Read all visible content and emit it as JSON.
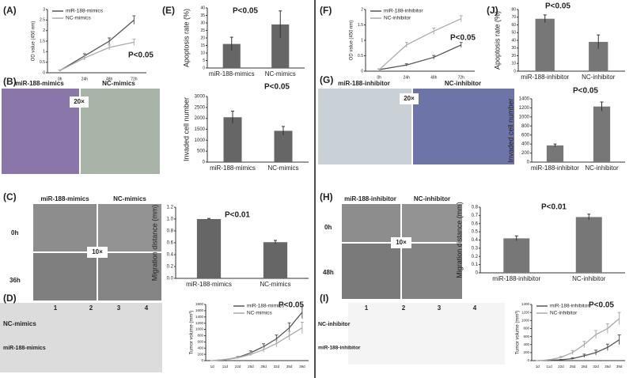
{
  "panels": [
    "(A)",
    "(B)",
    "(C)",
    "(D)",
    "(E)",
    "(F)",
    "(G)",
    "(H)",
    "(I)",
    "(J)"
  ],
  "images": {
    "B": {
      "left": "miR-188-mimics",
      "right": "NC-mimics",
      "mag": "20×"
    },
    "C": {
      "left": "miR-188-mimics",
      "right": "NC-mimics",
      "row1": "0h",
      "row2": "36h",
      "mag": "10×"
    },
    "D": {
      "numbers": [
        "1",
        "2",
        "3",
        "4"
      ],
      "row1": "NC-mimics",
      "row2": "miR-188-mimics"
    },
    "G": {
      "left": "miR-188-inhibitor",
      "right": "NC-inhibitor",
      "mag": "20×"
    },
    "H": {
      "left": "miR-188-inhibitor",
      "right": "NC-inhibitor",
      "row1": "0h",
      "row2": "48h",
      "mag": "10×"
    },
    "I": {
      "numbers": [
        "1",
        "2",
        "3",
        "4"
      ],
      "row1": "NC-inhibitor",
      "row2": "miR-188-inhibitor"
    }
  },
  "chart_data": [
    {
      "type": "line",
      "y_label": "OD value (450 nm)",
      "annotation": "P<0.05",
      "legend": "upper left",
      "categories": [
        "0h",
        "24h",
        "48h",
        "72h"
      ],
      "ylim": [
        0,
        3
      ],
      "yticks": [
        0,
        0.5,
        1,
        1.5,
        2,
        2.5,
        3
      ],
      "series": [
        {
          "name": "miR-188-mimics",
          "color": "#555555",
          "values": [
            0.1,
            0.8,
            1.5,
            2.5
          ],
          "errors": [
            0.03,
            0.1,
            0.15,
            0.2
          ]
        },
        {
          "name": "NC-mimics",
          "color": "#aaaaaa",
          "values": [
            0.1,
            0.7,
            1.2,
            1.45
          ],
          "errors": [
            0.03,
            0.1,
            0.12,
            0.15
          ]
        }
      ]
    },
    {
      "type": "bar",
      "y_label": "Apoptosis rate (%)",
      "annotation": "P<0.05",
      "categories": [
        "miR-188-mimics",
        "NC-mimics"
      ],
      "values": [
        16,
        29
      ],
      "errors": [
        4.5,
        9
      ],
      "color": "#666666",
      "ylim": [
        0,
        40
      ],
      "yticks": [
        0,
        5,
        10,
        15,
        20,
        25,
        30,
        35,
        40
      ]
    },
    {
      "type": "bar",
      "y_label": "Invaded cell number",
      "annotation": "P<0.05",
      "categories": [
        "miR-188-mimics",
        "NC-mimics"
      ],
      "values": [
        2050,
        1430
      ],
      "errors": [
        280,
        200
      ],
      "color": "#666666",
      "ylim": [
        0,
        3000
      ],
      "yticks": [
        0,
        500,
        1000,
        1500,
        2000,
        2500,
        3000
      ]
    },
    {
      "type": "bar",
      "y_label": "Migration distance (mm)",
      "annotation": "P<0.01",
      "categories": [
        "miR-188-mimics",
        "NC-mimics"
      ],
      "values": [
        1.0,
        0.61
      ],
      "errors": [
        0.01,
        0.03
      ],
      "color": "#666666",
      "ylim": [
        0,
        1.2
      ],
      "yticks": [
        {
          "value": 0,
          "label": "0.0"
        },
        0.2,
        0.4,
        0.6,
        0.8,
        {
          "value": 1,
          "label": "1.0"
        },
        1.2
      ]
    },
    {
      "type": "line",
      "y_label": "Tumor volume (mm³)",
      "annotation": "P<0.05",
      "legend": "upper center",
      "categories": [
        "1d",
        "11d",
        "22d",
        "25d",
        "28d",
        "32d",
        "35d",
        "39d"
      ],
      "ylim": [
        0,
        1800
      ],
      "yticks": [
        0,
        200,
        400,
        600,
        800,
        1000,
        1200,
        1400,
        1600,
        1800
      ],
      "series": [
        {
          "name": "miR-188-mimics",
          "color": "#555555",
          "values": [
            0,
            30,
            100,
            250,
            450,
            700,
            1050,
            1550
          ],
          "errors": [
            0,
            10,
            30,
            60,
            90,
            120,
            160,
            200
          ]
        },
        {
          "name": "NC-mimics",
          "color": "#aaaaaa",
          "values": [
            0,
            30,
            90,
            200,
            350,
            550,
            800,
            1050
          ],
          "errors": [
            0,
            10,
            25,
            50,
            80,
            110,
            140,
            180
          ]
        }
      ]
    },
    {
      "type": "line",
      "y_label": "OD value (450 nm)",
      "annotation": "P<0.05",
      "legend": "upper left",
      "categories": [
        "0h",
        "24h",
        "48h",
        "72h"
      ],
      "ylim": [
        0,
        2
      ],
      "yticks": [
        0,
        0.5,
        1,
        1.5,
        2
      ],
      "series": [
        {
          "name": "miR-188-inhibitor",
          "color": "#555555",
          "values": [
            0.05,
            0.2,
            0.45,
            0.85
          ],
          "errors": [
            0.02,
            0.04,
            0.06,
            0.08
          ]
        },
        {
          "name": "NC-inhibitor",
          "color": "#aaaaaa",
          "values": [
            0.05,
            0.85,
            1.3,
            1.7
          ],
          "errors": [
            0.02,
            0.08,
            0.1,
            0.1
          ]
        }
      ]
    },
    {
      "type": "bar",
      "y_label": "Apoptosis rate (%)",
      "annotation": "P<0.05",
      "categories": [
        "miR-188-inhibitor",
        "NC-inhibitor"
      ],
      "values": [
        68,
        38
      ],
      "errors": [
        5,
        9
      ],
      "color": "#777777",
      "ylim": [
        0,
        80
      ],
      "yticks": [
        0,
        10,
        20,
        30,
        40,
        50,
        60,
        70,
        80
      ]
    },
    {
      "type": "bar",
      "y_label": "Invaded cell number",
      "annotation": "P<0.05",
      "categories": [
        "miR-188-inhibitor",
        "NC-inhibitor"
      ],
      "values": [
        370,
        1230
      ],
      "errors": [
        30,
        100
      ],
      "color": "#777777",
      "ylim": [
        0,
        1400
      ],
      "yticks": [
        0,
        200,
        400,
        600,
        800,
        1000,
        1200,
        1400
      ]
    },
    {
      "type": "bar",
      "y_label": "Migration distance (mm)",
      "annotation": "P<0.01",
      "categories": [
        "miR-188-inhibitor",
        "NC-inhibitor"
      ],
      "values": [
        0.42,
        0.68
      ],
      "errors": [
        0.03,
        0.035
      ],
      "color": "#777777",
      "ylim": [
        0,
        0.8
      ],
      "yticks": [
        0,
        0.1,
        0.2,
        0.3,
        0.4,
        0.5,
        0.6,
        0.7,
        0.8
      ]
    },
    {
      "type": "line",
      "y_label": "Tumor volume (mm³)",
      "annotation": "P<0.05",
      "legend": "upper left",
      "categories": [
        "1d",
        "11d",
        "22d",
        "25d",
        "28d",
        "32d",
        "35d",
        "39d"
      ],
      "ylim": [
        0,
        1400
      ],
      "yticks": [
        0,
        200,
        400,
        600,
        800,
        1000,
        1200,
        1400
      ],
      "series": [
        {
          "name": "miR-188-inhibitor",
          "color": "#555555",
          "values": [
            0,
            10,
            20,
            50,
            120,
            200,
            330,
            520
          ],
          "errors": [
            0,
            5,
            10,
            20,
            40,
            60,
            80,
            120
          ]
        },
        {
          "name": "NC-inhibitor",
          "color": "#aaaaaa",
          "values": [
            0,
            20,
            80,
            200,
            400,
            650,
            800,
            1050
          ],
          "errors": [
            0,
            10,
            25,
            50,
            80,
            100,
            120,
            150
          ]
        }
      ]
    }
  ]
}
